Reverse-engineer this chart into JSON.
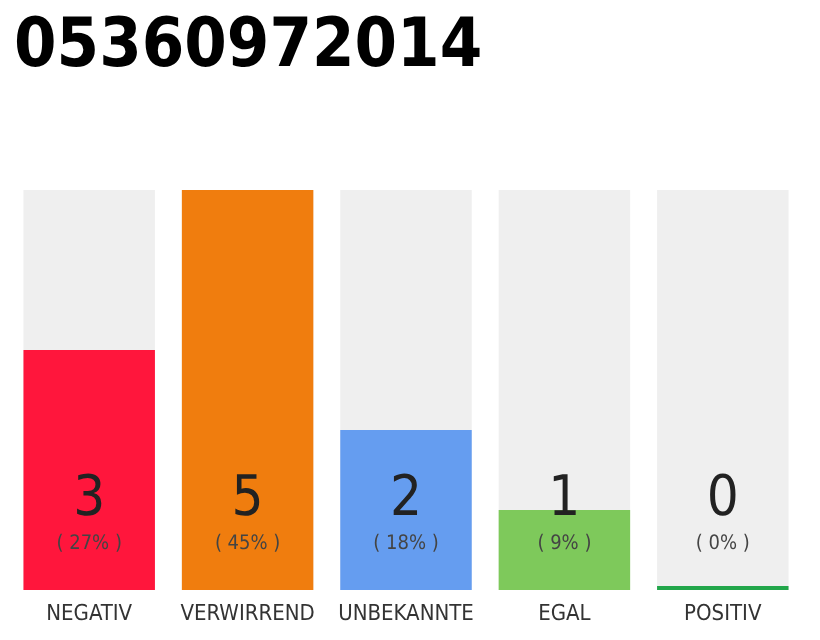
{
  "chart_data": {
    "type": "bar",
    "title": "05360972014",
    "categories": [
      "NEGATIV",
      "VERWIRREND",
      "UNBEKANNTE",
      "EGAL",
      "POSITIV"
    ],
    "values": [
      3,
      5,
      2,
      1,
      0
    ],
    "colors": [
      "#ff163c",
      "#f07d0e",
      "#659df0",
      "#7ec95b",
      "#22a64a"
    ],
    "value_labels": [
      "3\n( 27% )",
      "5\n( 45% )",
      "2\n( 18% )",
      "1\n( 9% )",
      "0\n( 0% )"
    ],
    "ylim": [
      0,
      5
    ]
  }
}
